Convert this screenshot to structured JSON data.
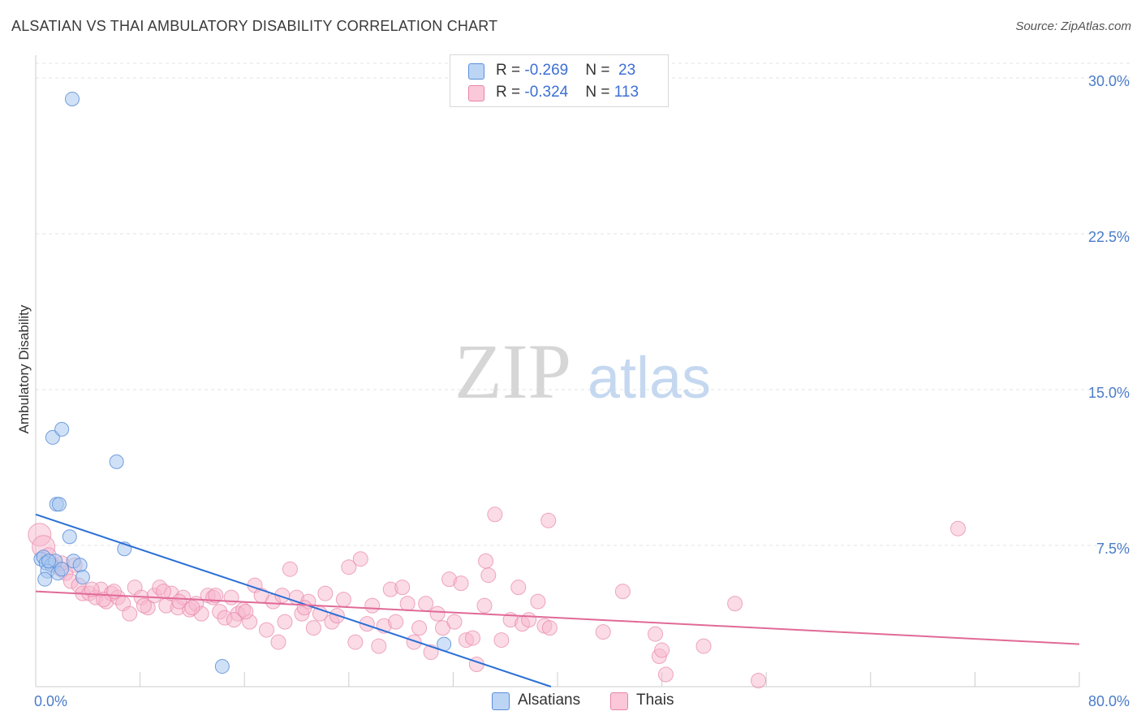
{
  "title": "ALSATIAN VS THAI AMBULATORY DISABILITY CORRELATION CHART",
  "source": "Source: ZipAtlas.com",
  "watermark": {
    "zip": "ZIP",
    "atlas": "atlas"
  },
  "colors": {
    "alsatian_fill": "#a9c8f0",
    "alsatian_stroke": "#5b8ed8",
    "alsatian_line": "#2a6fd6",
    "thai_fill": "#f7b8cd",
    "thai_stroke": "#e784a6",
    "thai_line": "#e06a96",
    "axis_text": "#4a7cc9",
    "grid": "#e3e3e3"
  },
  "legend": {
    "rows": [
      {
        "r_label": "R = ",
        "r_value": "-0.269",
        "n_label": "N = ",
        "n_value": "23"
      },
      {
        "r_label": "R = ",
        "r_value": "-0.324",
        "n_label": "N = ",
        "n_value": "113"
      }
    ]
  },
  "bottom_legend": {
    "alsatians": "Alsatians",
    "thais": "Thais"
  },
  "chart_data": {
    "type": "scatter",
    "title": "ALSATIAN VS THAI AMBULATORY DISABILITY CORRELATION CHART",
    "xlabel": "",
    "ylabel": "Ambulatory Disability",
    "xlim": [
      0,
      80
    ],
    "ylim": [
      0,
      30
    ],
    "x_tick_labels": [
      {
        "value": 0,
        "label": "0.0%"
      },
      {
        "value": 80,
        "label": "80.0%"
      }
    ],
    "y_ticks": [
      {
        "value": 7.5,
        "label": "7.5%"
      },
      {
        "value": 15.0,
        "label": "15.0%"
      },
      {
        "value": 22.5,
        "label": "22.5%"
      },
      {
        "value": 30.0,
        "label": "30.0%"
      }
    ],
    "series": [
      {
        "name": "Alsatians",
        "r": -0.269,
        "n": 23,
        "trend": {
          "x0": 0,
          "y0": 8.5,
          "x1": 39.5,
          "y1": 0
        },
        "points": [
          [
            2.8,
            29.0
          ],
          [
            1.3,
            12.3
          ],
          [
            2.0,
            12.7
          ],
          [
            6.2,
            11.1
          ],
          [
            1.6,
            9.0
          ],
          [
            1.8,
            9.0
          ],
          [
            2.6,
            7.4
          ],
          [
            6.8,
            6.8
          ],
          [
            0.4,
            6.3
          ],
          [
            0.6,
            6.4
          ],
          [
            0.8,
            6.1
          ],
          [
            1.2,
            6.0
          ],
          [
            1.5,
            6.2
          ],
          [
            2.9,
            6.2
          ],
          [
            3.4,
            6.0
          ],
          [
            0.9,
            5.7
          ],
          [
            1.7,
            5.6
          ],
          [
            0.7,
            5.3
          ],
          [
            3.6,
            5.4
          ],
          [
            1.0,
            6.2
          ],
          [
            2.0,
            5.8
          ],
          [
            31.3,
            2.1
          ],
          [
            14.3,
            1.0
          ]
        ]
      },
      {
        "name": "Thais",
        "r": -0.324,
        "n": 113,
        "trend": {
          "x0": 0,
          "y0": 4.7,
          "x1": 80,
          "y1": 2.1
        },
        "points": [
          [
            0.3,
            7.5
          ],
          [
            0.6,
            6.9
          ],
          [
            1.0,
            6.5
          ],
          [
            1.4,
            6.0
          ],
          [
            1.9,
            5.8
          ],
          [
            2.3,
            5.6
          ],
          [
            2.7,
            5.2
          ],
          [
            3.3,
            5.0
          ],
          [
            3.6,
            4.6
          ],
          [
            4.1,
            4.6
          ],
          [
            4.6,
            4.4
          ],
          [
            5.0,
            4.8
          ],
          [
            5.4,
            4.2
          ],
          [
            5.8,
            4.6
          ],
          [
            6.3,
            4.4
          ],
          [
            6.7,
            4.1
          ],
          [
            7.2,
            3.6
          ],
          [
            7.6,
            4.9
          ],
          [
            8.1,
            4.4
          ],
          [
            8.6,
            3.9
          ],
          [
            9.1,
            4.5
          ],
          [
            9.5,
            4.9
          ],
          [
            10.0,
            4.0
          ],
          [
            10.4,
            4.6
          ],
          [
            10.9,
            3.9
          ],
          [
            11.3,
            4.4
          ],
          [
            11.8,
            3.8
          ],
          [
            12.3,
            4.1
          ],
          [
            12.7,
            3.6
          ],
          [
            13.2,
            4.5
          ],
          [
            13.6,
            4.4
          ],
          [
            14.1,
            3.7
          ],
          [
            14.5,
            3.4
          ],
          [
            15.0,
            4.4
          ],
          [
            15.5,
            3.6
          ],
          [
            15.9,
            3.8
          ],
          [
            16.4,
            3.2
          ],
          [
            16.8,
            5.0
          ],
          [
            17.3,
            4.5
          ],
          [
            17.7,
            2.8
          ],
          [
            18.2,
            4.2
          ],
          [
            18.6,
            2.2
          ],
          [
            19.1,
            3.2
          ],
          [
            19.5,
            5.8
          ],
          [
            20.0,
            4.4
          ],
          [
            20.4,
            3.6
          ],
          [
            20.9,
            4.2
          ],
          [
            21.3,
            2.9
          ],
          [
            21.8,
            3.6
          ],
          [
            22.2,
            4.6
          ],
          [
            22.7,
            3.2
          ],
          [
            23.1,
            3.5
          ],
          [
            23.6,
            4.3
          ],
          [
            24.0,
            5.9
          ],
          [
            24.5,
            2.2
          ],
          [
            24.9,
            6.3
          ],
          [
            25.4,
            3.1
          ],
          [
            25.8,
            4.0
          ],
          [
            26.3,
            2.0
          ],
          [
            26.7,
            3.0
          ],
          [
            27.2,
            4.8
          ],
          [
            27.6,
            3.2
          ],
          [
            28.1,
            4.9
          ],
          [
            28.5,
            4.1
          ],
          [
            29.0,
            2.2
          ],
          [
            29.4,
            2.9
          ],
          [
            29.9,
            4.1
          ],
          [
            30.3,
            1.7
          ],
          [
            30.8,
            3.6
          ],
          [
            31.2,
            2.9
          ],
          [
            31.7,
            5.3
          ],
          [
            32.1,
            3.2
          ],
          [
            32.6,
            5.1
          ],
          [
            33.0,
            2.3
          ],
          [
            33.5,
            2.4
          ],
          [
            33.8,
            1.1
          ],
          [
            34.4,
            4.0
          ],
          [
            34.7,
            5.5
          ],
          [
            34.5,
            6.2
          ],
          [
            35.2,
            8.5
          ],
          [
            35.7,
            2.3
          ],
          [
            36.4,
            3.3
          ],
          [
            37.0,
            4.9
          ],
          [
            37.3,
            3.1
          ],
          [
            37.8,
            3.3
          ],
          [
            38.5,
            4.2
          ],
          [
            39.0,
            3.0
          ],
          [
            39.4,
            2.9
          ],
          [
            39.3,
            8.2
          ],
          [
            43.5,
            2.7
          ],
          [
            45.0,
            4.7
          ],
          [
            47.5,
            2.6
          ],
          [
            47.8,
            1.5
          ],
          [
            48.0,
            1.8
          ],
          [
            48.3,
            0.6
          ],
          [
            51.2,
            2.0
          ],
          [
            53.6,
            4.1
          ],
          [
            55.4,
            0.3
          ],
          [
            70.7,
            7.8
          ],
          [
            2.0,
            6.1
          ],
          [
            3.0,
            6.0
          ],
          [
            4.3,
            4.8
          ],
          [
            5.2,
            4.3
          ],
          [
            6.0,
            4.7
          ],
          [
            8.3,
            4.0
          ],
          [
            9.8,
            4.7
          ],
          [
            11.0,
            4.2
          ],
          [
            12.0,
            3.9
          ],
          [
            13.8,
            4.5
          ],
          [
            15.2,
            3.3
          ],
          [
            16.1,
            3.7
          ],
          [
            18.9,
            4.5
          ],
          [
            20.6,
            3.9
          ]
        ]
      }
    ]
  }
}
